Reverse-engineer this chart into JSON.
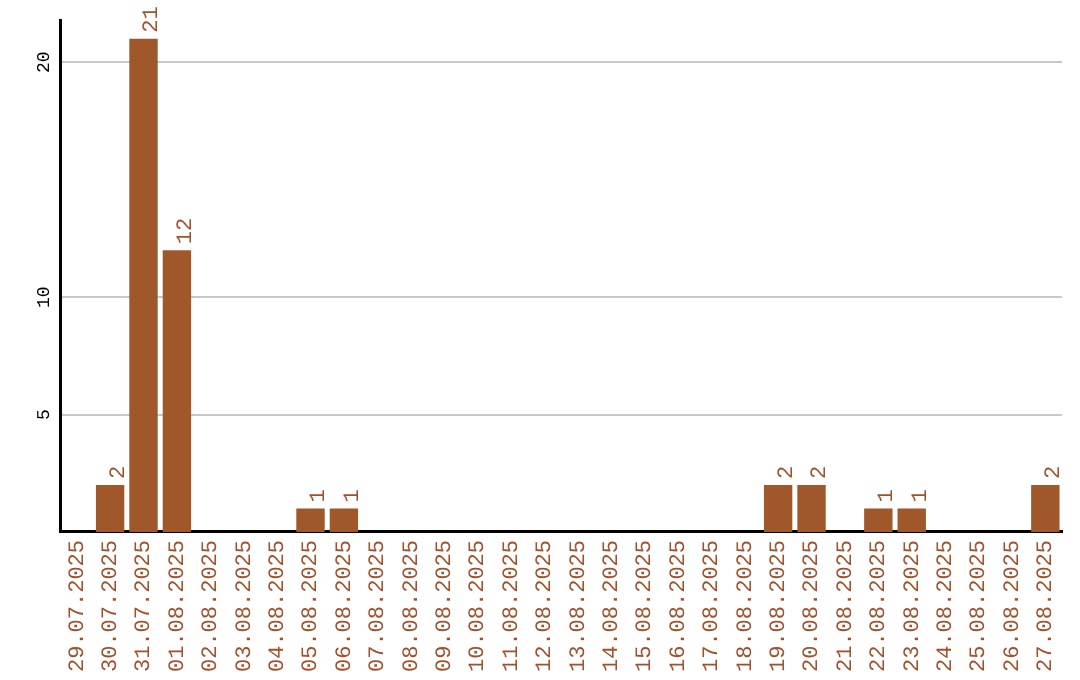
{
  "chart_data": {
    "type": "bar",
    "categories": [
      "29.07.2025",
      "30.07.2025",
      "31.07.2025",
      "01.08.2025",
      "02.08.2025",
      "03.08.2025",
      "04.08.2025",
      "05.08.2025",
      "06.08.2025",
      "07.08.2025",
      "08.08.2025",
      "09.08.2025",
      "10.08.2025",
      "11.08.2025",
      "12.08.2025",
      "13.08.2025",
      "14.08.2025",
      "15.08.2025",
      "16.08.2025",
      "17.08.2025",
      "18.08.2025",
      "19.08.2025",
      "20.08.2025",
      "21.08.2025",
      "22.08.2025",
      "23.08.2025",
      "24.08.2025",
      "25.08.2025",
      "26.08.2025",
      "27.08.2025"
    ],
    "values": [
      0,
      2,
      21,
      12,
      0,
      0,
      0,
      1,
      1,
      0,
      0,
      0,
      0,
      0,
      0,
      0,
      0,
      0,
      0,
      0,
      0,
      2,
      2,
      0,
      1,
      1,
      0,
      0,
      0,
      2
    ],
    "value_labels": [
      null,
      "2",
      "21",
      "12",
      null,
      null,
      null,
      "1",
      "1",
      null,
      null,
      null,
      null,
      null,
      null,
      null,
      null,
      null,
      null,
      null,
      null,
      "2",
      "2",
      null,
      "1",
      "1",
      null,
      null,
      null,
      "2"
    ],
    "color": "#a0572a",
    "ylim": [
      0,
      21.8
    ],
    "yticks": [
      5,
      10,
      20
    ],
    "grid": "y"
  }
}
